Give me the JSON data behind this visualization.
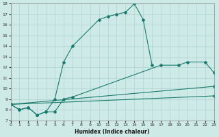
{
  "line1_x": [
    0,
    1,
    2,
    3,
    4,
    5,
    6,
    7,
    10,
    11,
    12,
    13,
    14,
    15,
    16
  ],
  "line1_y": [
    8.5,
    8.0,
    8.2,
    7.5,
    7.8,
    9.0,
    12.5,
    14.0,
    16.5,
    16.8,
    17.0,
    17.2,
    18.0,
    16.5,
    12.2
  ],
  "line2_x": [
    0,
    1,
    2,
    3,
    4,
    5,
    6,
    7,
    17,
    19,
    20,
    22,
    23
  ],
  "line2_y": [
    8.5,
    8.0,
    8.2,
    7.5,
    7.8,
    7.8,
    9.0,
    9.2,
    12.2,
    12.2,
    12.5,
    12.5,
    11.5
  ],
  "line3_x": [
    0,
    23
  ],
  "line3_y": [
    8.5,
    10.2
  ],
  "line4_x": [
    0,
    23
  ],
  "line4_y": [
    8.5,
    9.3
  ],
  "bg_color": "#ceeae6",
  "line_color": "#1a7a6e",
  "grid_color": "#add4d0",
  "xlabel": "Humidex (Indice chaleur)",
  "xlim": [
    0,
    23
  ],
  "ylim": [
    7,
    18
  ],
  "yticks": [
    7,
    8,
    9,
    10,
    11,
    12,
    13,
    14,
    15,
    16,
    17,
    18
  ],
  "xticks": [
    0,
    1,
    2,
    3,
    4,
    5,
    6,
    7,
    8,
    9,
    10,
    11,
    12,
    13,
    14,
    15,
    16,
    17,
    18,
    19,
    20,
    21,
    22,
    23
  ]
}
